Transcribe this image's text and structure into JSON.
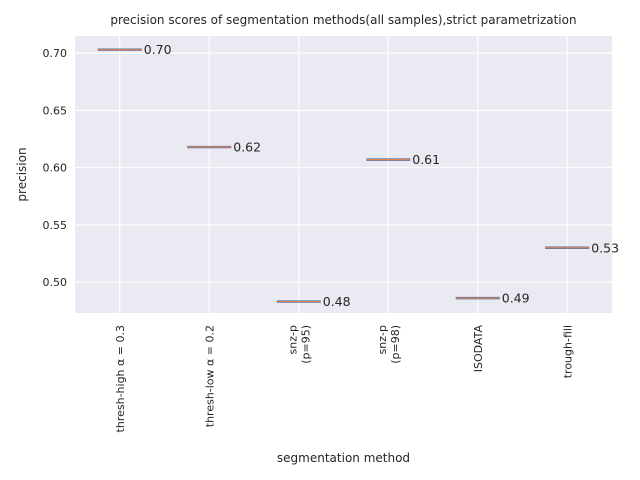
{
  "chart_data": {
    "type": "box",
    "title": "precision scores of segmentation methods(all samples),strict parametrization",
    "xlabel": "segmentation method",
    "ylabel": "precision",
    "ylim": [
      0.473,
      0.715
    ],
    "yticks": [
      0.5,
      0.55,
      0.6,
      0.65,
      0.7
    ],
    "ytick_labels": [
      "0.50",
      "0.55",
      "0.60",
      "0.65",
      "0.70"
    ],
    "grid": true,
    "colors": {
      "background": "#eaeaf2",
      "grid": "#ffffff",
      "box": "#4c72b0",
      "median": "#dd8452"
    },
    "categories": [
      [
        "thresh-high α = 0.3"
      ],
      [
        "thresh-low α = 0.2"
      ],
      [
        "snz-p",
        "(p=95)"
      ],
      [
        "snz-p",
        "(p=98)"
      ],
      [
        "ISODATA"
      ],
      [
        "trough-fill"
      ]
    ],
    "values": [
      0.703,
      0.618,
      0.483,
      0.607,
      0.486,
      0.53
    ],
    "value_labels": [
      "0.70",
      "0.62",
      "0.48",
      "0.61",
      "0.49",
      "0.53"
    ]
  }
}
